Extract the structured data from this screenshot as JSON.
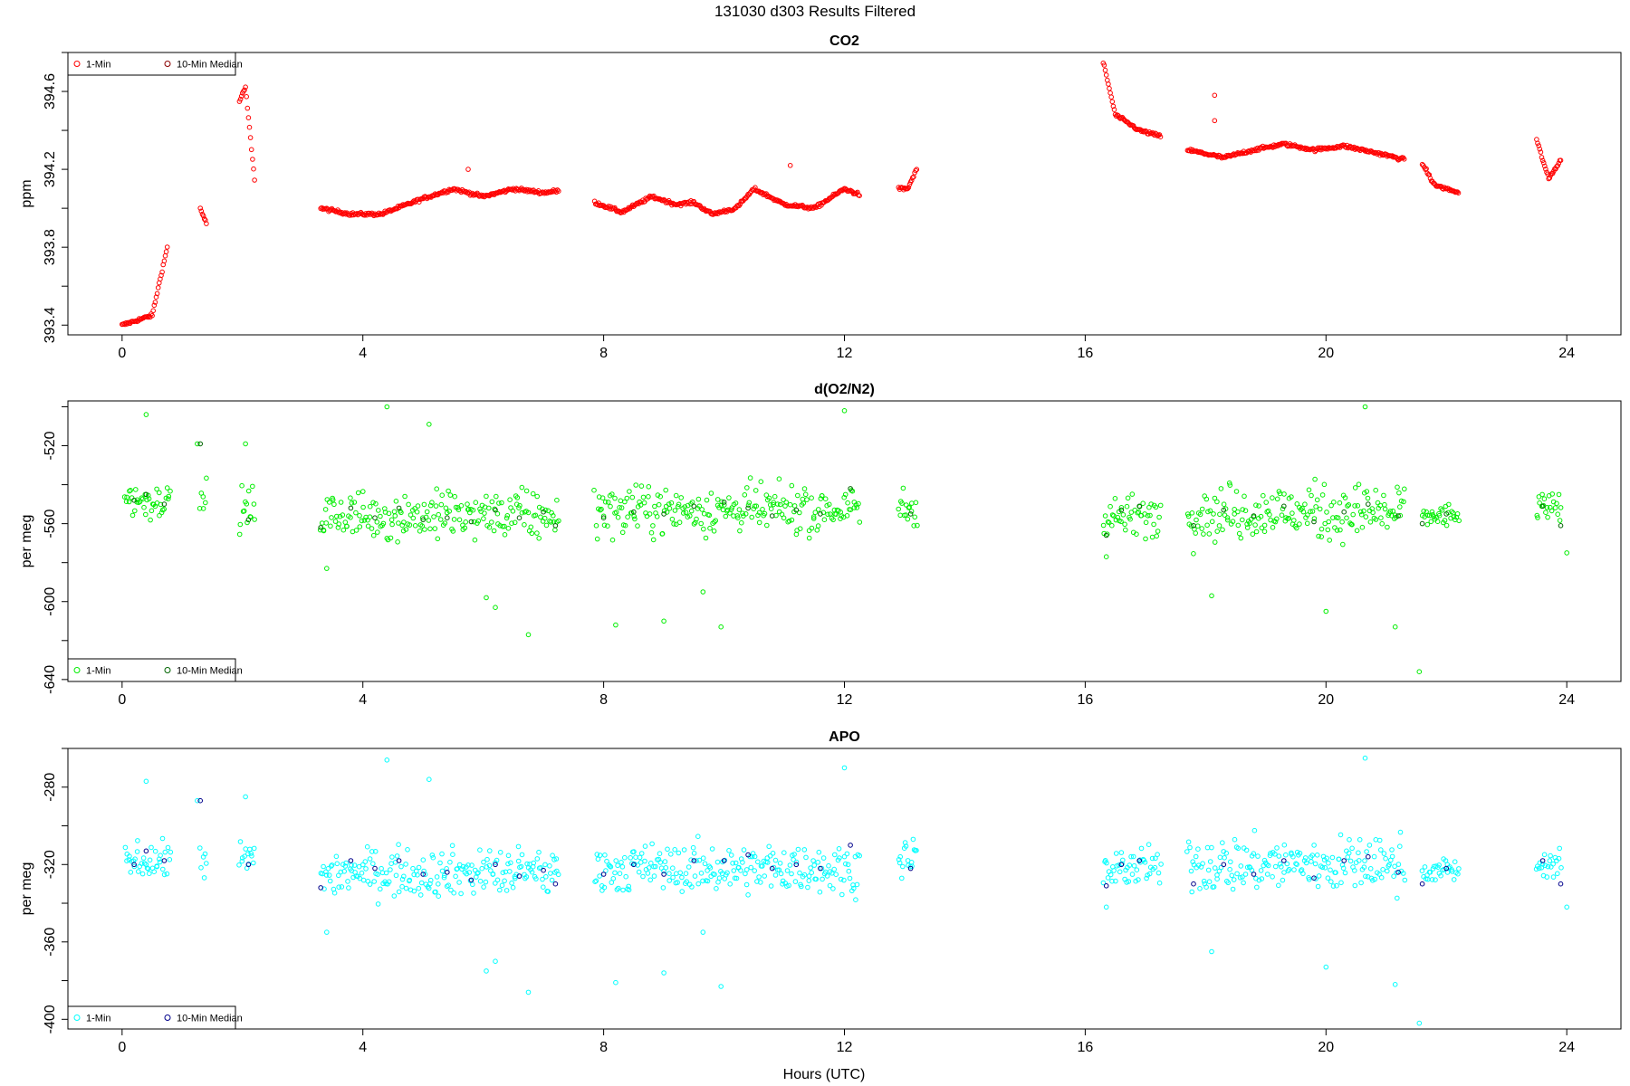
{
  "figure_title": "131030   d303   Results Filtered",
  "x_axis_label": "Hours (UTC)",
  "chart_data": [
    {
      "type": "scatter",
      "title": "CO2",
      "xlabel": "",
      "ylabel": "ppm",
      "xlim": [
        -0.9,
        24.9
      ],
      "ylim": [
        393.35,
        394.8
      ],
      "xticks": [
        0,
        4,
        8,
        12,
        16,
        20,
        24
      ],
      "yticks": [
        393.4,
        393.8,
        394.2,
        394.6
      ],
      "ytick_labels": [
        "393.4",
        "393.8",
        "394.2",
        "394.6"
      ],
      "legend": {
        "position": "top-left",
        "entries": [
          "1-Min",
          "10-Min Median"
        ]
      },
      "colors": {
        "one_min": "#ff0000",
        "median": "#8b0000"
      },
      "series": [
        {
          "name": "1-Min",
          "segments": [
            {
              "x": [
                0.0,
                0.5,
                0.75
              ],
              "y": [
                393.4,
                393.45,
                393.8
              ]
            },
            {
              "x": [
                1.3,
                1.4
              ],
              "y": [
                394.0,
                393.92
              ]
            },
            {
              "x": [
                1.95,
                2.05,
                2.2
              ],
              "y": [
                394.55,
                394.62,
                394.15
              ]
            },
            {
              "x": [
                3.3,
                3.8,
                4.3,
                5.0,
                5.5,
                6.0,
                6.5,
                7.0,
                7.25
              ],
              "y": [
                394.0,
                393.97,
                393.97,
                394.05,
                394.1,
                394.06,
                394.1,
                394.08,
                394.09
              ]
            },
            {
              "x": [
                7.85,
                8.3,
                8.8,
                9.2,
                9.5,
                9.8,
                10.2,
                10.5,
                11.0,
                11.5,
                12.0,
                12.25
              ],
              "y": [
                394.03,
                393.98,
                394.06,
                394.02,
                394.03,
                393.97,
                394.0,
                394.1,
                394.02,
                394.0,
                394.1,
                394.07
              ]
            },
            {
              "x": [
                12.9,
                13.05,
                13.2
              ],
              "y": [
                394.1,
                394.1,
                394.2
              ]
            },
            {
              "x": [
                16.3,
                16.5,
                16.9,
                17.25
              ],
              "y": [
                394.75,
                394.48,
                394.4,
                394.37
              ]
            },
            {
              "x": [
                17.7,
                18.3,
                18.8,
                19.3,
                19.8,
                20.3,
                20.9,
                21.3
              ],
              "y": [
                394.3,
                394.26,
                394.3,
                394.33,
                394.3,
                394.32,
                394.28,
                394.25
              ]
            },
            {
              "x": [
                21.6,
                21.8,
                22.2
              ],
              "y": [
                394.23,
                394.12,
                394.08
              ]
            },
            {
              "x": [
                23.5,
                23.7,
                23.9
              ],
              "y": [
                394.35,
                394.15,
                394.25
              ]
            }
          ],
          "outliers": {
            "x": [
              5.75,
              11.1,
              18.15,
              18.15
            ],
            "y": [
              394.2,
              394.22,
              394.58,
              394.45
            ]
          }
        }
      ]
    },
    {
      "type": "scatter",
      "title": "d(O2/N2)",
      "xlabel": "",
      "ylabel": "per meg",
      "xlim": [
        -0.9,
        24.9
      ],
      "ylim": [
        -641,
        -497
      ],
      "xticks": [
        0,
        4,
        8,
        12,
        16,
        20,
        24
      ],
      "yticks": [
        -520,
        -560,
        -600,
        -640
      ],
      "ytick_labels": [
        "-520",
        "-560",
        "-600",
        "-640"
      ],
      "legend": {
        "position": "bottom-left",
        "entries": [
          "1-Min",
          "10-Min Median"
        ]
      },
      "colors": {
        "one_min": "#00ee00",
        "median": "#006400"
      },
      "series": [
        {
          "name": "1-Min",
          "segments": [
            {
              "x": [
                0.05,
                0.8
              ],
              "center": -548,
              "spread": 9
            },
            {
              "x": [
                1.3,
                1.4
              ],
              "center": -548,
              "spread": 9
            },
            {
              "x": [
                1.95,
                2.2
              ],
              "center": -553,
              "spread": 11
            },
            {
              "x": [
                3.3,
                7.25
              ],
              "center": -556,
              "spread": 12
            },
            {
              "x": [
                7.85,
                12.25
              ],
              "center": -553,
              "spread": 12
            },
            {
              "x": [
                12.9,
                13.2
              ],
              "center": -552,
              "spread": 10
            },
            {
              "x": [
                16.3,
                17.25
              ],
              "center": -556,
              "spread": 10
            },
            {
              "x": [
                17.7,
                21.3
              ],
              "center": -554,
              "spread": 14
            },
            {
              "x": [
                21.6,
                22.2
              ],
              "center": -556,
              "spread": 6
            },
            {
              "x": [
                23.5,
                23.9
              ],
              "center": -552,
              "spread": 7
            }
          ],
          "outliers": {
            "x": [
              0.4,
              1.25,
              2.05,
              3.4,
              4.4,
              5.1,
              6.05,
              6.2,
              6.75,
              8.2,
              9.0,
              9.65,
              9.95,
              12.0,
              16.35,
              18.1,
              20.0,
              20.65,
              21.15,
              21.55,
              24.0
            ],
            "y": [
              -504,
              -519,
              -519,
              -583,
              -500,
              -509,
              -598,
              -603,
              -617,
              -612,
              -610,
              -595,
              -613,
              -502,
              -577,
              -597,
              -605,
              -500,
              -613,
              -636,
              -575
            ]
          }
        },
        {
          "name": "10-Min Median",
          "x": [
            0.2,
            0.4,
            0.7,
            1.3,
            2.1,
            3.3,
            3.8,
            4.2,
            4.6,
            5.0,
            5.4,
            5.8,
            6.2,
            6.6,
            7.0,
            7.2,
            8.0,
            8.5,
            9.0,
            9.5,
            10.0,
            10.4,
            10.8,
            11.2,
            11.6,
            12.1,
            13.1,
            16.35,
            16.6,
            16.9,
            17.8,
            18.3,
            18.8,
            19.3,
            19.8,
            20.3,
            20.7,
            21.2,
            21.6,
            22.0,
            23.6,
            23.9
          ],
          "y": [
            -548,
            -545,
            -550,
            -519,
            -558,
            -562,
            -552,
            -557,
            -552,
            -558,
            -557,
            -559,
            -553,
            -557,
            -554,
            -561,
            -557,
            -554,
            -555,
            -551,
            -549,
            -552,
            -556,
            -553,
            -555,
            -542,
            -555,
            -566,
            -553,
            -551,
            -561,
            -553,
            -556,
            -551,
            -559,
            -554,
            -550,
            -556,
            -560,
            -555,
            -551,
            -561
          ]
        }
      ]
    },
    {
      "type": "scatter",
      "title": "APO",
      "xlabel": "Hours (UTC)",
      "ylabel": "per meg",
      "xlim": [
        -0.9,
        24.9
      ],
      "ylim": [
        -405,
        -260
      ],
      "xticks": [
        0,
        4,
        8,
        12,
        16,
        20,
        24
      ],
      "yticks": [
        -280,
        -320,
        -360,
        -400
      ],
      "ytick_labels": [
        "-280",
        "-320",
        "-360",
        "-400"
      ],
      "legend": {
        "position": "bottom-left",
        "entries": [
          "1-Min",
          "10-Min Median"
        ]
      },
      "colors": {
        "one_min": "#00ffff",
        "median": "#00008b"
      },
      "series": [
        {
          "name": "1-Min",
          "segments": [
            {
              "x": [
                0.05,
                0.8
              ],
              "center": -318,
              "spread": 9
            },
            {
              "x": [
                1.3,
                1.4
              ],
              "center": -316,
              "spread": 9
            },
            {
              "x": [
                1.95,
                2.2
              ],
              "center": -318,
              "spread": 10
            },
            {
              "x": [
                3.3,
                7.25
              ],
              "center": -324,
              "spread": 12
            },
            {
              "x": [
                7.85,
                12.25
              ],
              "center": -322,
              "spread": 12
            },
            {
              "x": [
                12.9,
                13.2
              ],
              "center": -318,
              "spread": 10
            },
            {
              "x": [
                16.3,
                17.25
              ],
              "center": -322,
              "spread": 10
            },
            {
              "x": [
                17.7,
                21.3
              ],
              "center": -320,
              "spread": 14
            },
            {
              "x": [
                21.6,
                22.2
              ],
              "center": -323,
              "spread": 6
            },
            {
              "x": [
                23.5,
                23.9
              ],
              "center": -320,
              "spread": 7
            }
          ],
          "outliers": {
            "x": [
              0.4,
              1.25,
              2.05,
              3.4,
              4.4,
              5.1,
              6.05,
              6.2,
              6.75,
              8.2,
              9.0,
              9.65,
              9.95,
              12.0,
              16.35,
              18.1,
              20.0,
              20.65,
              21.15,
              21.55,
              24.0
            ],
            "y": [
              -277,
              -287,
              -285,
              -355,
              -266,
              -276,
              -375,
              -370,
              -386,
              -381,
              -376,
              -355,
              -383,
              -270,
              -342,
              -365,
              -373,
              -265,
              -382,
              -402,
              -342
            ]
          }
        },
        {
          "name": "10-Min Median",
          "x": [
            0.2,
            0.4,
            0.7,
            1.3,
            2.1,
            3.3,
            3.8,
            4.2,
            4.6,
            5.0,
            5.4,
            5.8,
            6.2,
            6.6,
            7.0,
            7.2,
            8.0,
            8.5,
            9.0,
            9.5,
            10.0,
            10.4,
            10.8,
            11.2,
            11.6,
            12.1,
            13.1,
            16.35,
            16.6,
            16.9,
            17.8,
            18.3,
            18.8,
            19.3,
            19.8,
            20.3,
            20.7,
            21.2,
            21.6,
            22.0,
            23.6,
            23.9
          ],
          "y": [
            -320,
            -313,
            -318,
            -287,
            -320,
            -332,
            -318,
            -322,
            -318,
            -325,
            -324,
            -328,
            -320,
            -326,
            -323,
            -330,
            -325,
            -320,
            -325,
            -318,
            -318,
            -315,
            -322,
            -320,
            -322,
            -310,
            -322,
            -331,
            -320,
            -318,
            -330,
            -320,
            -325,
            -318,
            -327,
            -318,
            -316,
            -324,
            -330,
            -322,
            -318,
            -330
          ]
        }
      ]
    }
  ]
}
